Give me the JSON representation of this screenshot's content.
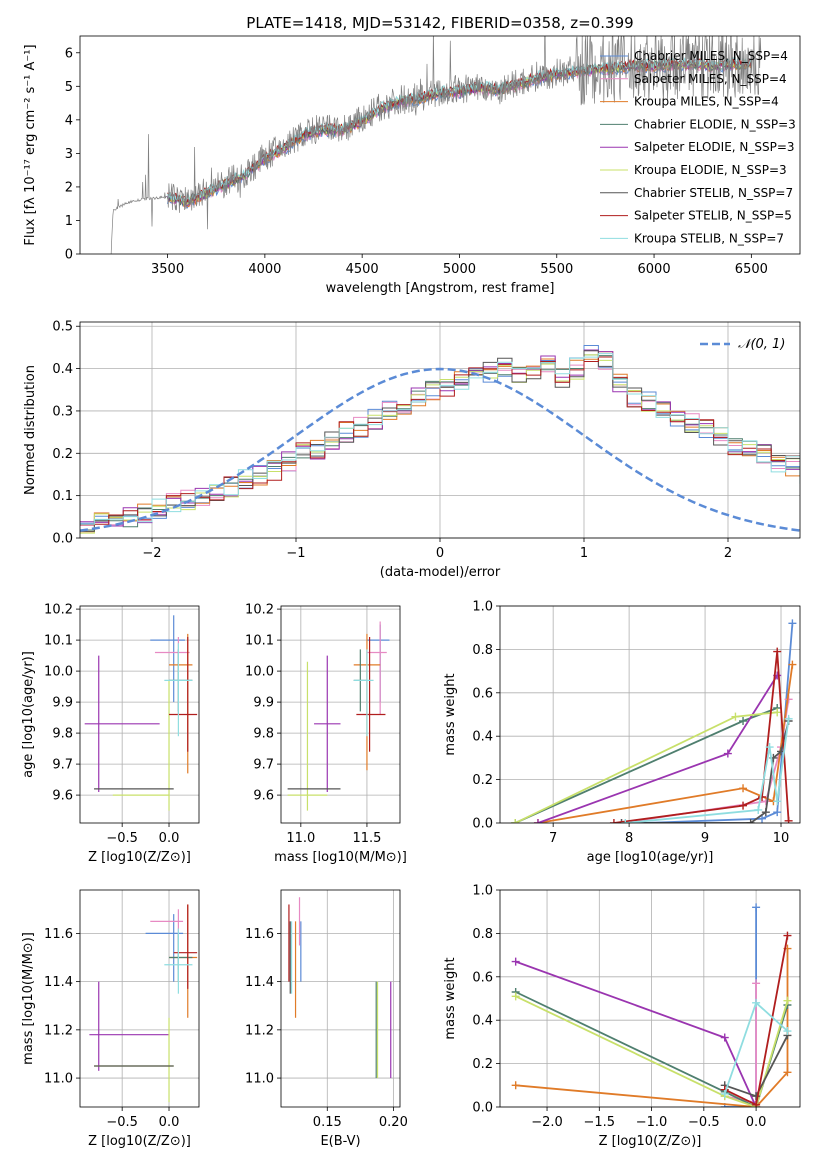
{
  "figure": {
    "title": "PLATE=1418, MJD=53142, FIBERID=0358, z=0.399"
  },
  "chart_data": [
    {
      "id": "spectrum",
      "type": "line",
      "xlabel": "wavelength [Angstrom, rest frame]",
      "ylabel": "Flux [fλ 10⁻¹⁷ erg cm⁻² s⁻¹ A⁻¹]",
      "xlim": [
        3050,
        6750
      ],
      "ylim": [
        0,
        6.5
      ],
      "xticks": [
        3500,
        4000,
        4500,
        5000,
        5500,
        6000,
        6500
      ],
      "yticks": [
        0,
        1,
        2,
        3,
        4,
        5,
        6
      ],
      "grid": false,
      "legend": "top-right",
      "observed": {
        "color": "#808080",
        "x": [
          3210,
          3220,
          3300,
          3400,
          3500,
          3600,
          3700,
          3800,
          3900,
          4000,
          4100,
          4200,
          4300,
          4400,
          4500,
          4600,
          4700,
          4800,
          4900,
          5000,
          5100,
          5200,
          5300,
          5400,
          5500,
          5600,
          5700,
          5800,
          5900,
          6000,
          6100,
          6200,
          6300,
          6400,
          6500,
          6550
        ],
        "y": [
          0.0,
          1.3,
          1.55,
          1.65,
          1.7,
          1.6,
          1.85,
          2.1,
          2.4,
          2.9,
          3.2,
          3.6,
          3.75,
          3.7,
          4.0,
          4.4,
          4.6,
          4.7,
          4.8,
          4.9,
          5.0,
          4.9,
          5.1,
          5.3,
          5.4,
          5.5,
          5.55,
          5.6,
          5.6,
          5.65,
          5.7,
          5.7,
          5.65,
          5.7,
          5.7,
          5.7
        ]
      },
      "model_x": [
        3500,
        3600,
        3700,
        3800,
        3900,
        4000,
        4100,
        4200,
        4300,
        4400,
        4500,
        4600,
        4700,
        4800,
        4900,
        5000,
        5100,
        5200,
        5300,
        5400,
        5500,
        5600,
        5700,
        5800,
        5900,
        6000,
        6100,
        6200,
        6300,
        6400,
        6500
      ],
      "model_y": [
        1.7,
        1.55,
        1.8,
        2.1,
        2.35,
        2.85,
        3.15,
        3.55,
        3.7,
        3.7,
        3.95,
        4.35,
        4.55,
        4.65,
        4.8,
        4.85,
        4.95,
        4.9,
        5.05,
        5.25,
        5.35,
        5.45,
        5.5,
        5.55,
        5.6,
        5.6,
        5.65,
        5.65,
        5.6,
        5.65,
        5.65
      ],
      "series": [
        {
          "name": "Chabrier MILES, N_SSP=4",
          "color": "#5b8bd6"
        },
        {
          "name": "Salpeter MILES, N_SSP=4",
          "color": "#e78ac3"
        },
        {
          "name": "Kroupa MILES, N_SSP=4",
          "color": "#e07b28"
        },
        {
          "name": "Chabrier ELODIE, N_SSP=3",
          "color": "#4f7f6f"
        },
        {
          "name": "Salpeter ELODIE, N_SSP=3",
          "color": "#9a35b0"
        },
        {
          "name": "Kroupa ELODIE, N_SSP=3",
          "color": "#c8e06a"
        },
        {
          "name": "Chabrier STELIB, N_SSP=7",
          "color": "#555555"
        },
        {
          "name": "Salpeter STELIB, N_SSP=5",
          "color": "#b01e1e"
        },
        {
          "name": "Kroupa STELIB, N_SSP=7",
          "color": "#8fdde0"
        }
      ]
    },
    {
      "id": "residuals",
      "type": "histogram",
      "xlabel": "(data-model)/error",
      "ylabel": "Normed distribution",
      "xlim": [
        -2.5,
        2.5
      ],
      "ylim": [
        0,
        0.51
      ],
      "xticks": [
        -2,
        -1,
        0,
        1,
        2
      ],
      "yticks": [
        0.0,
        0.1,
        0.2,
        0.3,
        0.4,
        0.5
      ],
      "grid": true,
      "legend": "top-right",
      "reference_curve": {
        "label": "𝒩(0, 1)",
        "color": "#5b8bd6",
        "style": "dashed"
      },
      "bin_edges_start": -2.5,
      "bin_width": 0.1,
      "hist_values": [
        0.035,
        0.04,
        0.045,
        0.05,
        0.06,
        0.07,
        0.08,
        0.09,
        0.1,
        0.11,
        0.12,
        0.14,
        0.15,
        0.16,
        0.18,
        0.2,
        0.21,
        0.23,
        0.25,
        0.26,
        0.28,
        0.3,
        0.31,
        0.33,
        0.35,
        0.36,
        0.37,
        0.38,
        0.39,
        0.4,
        0.39,
        0.4,
        0.41,
        0.38,
        0.4,
        0.44,
        0.42,
        0.37,
        0.33,
        0.32,
        0.3,
        0.28,
        0.27,
        0.26,
        0.24,
        0.22,
        0.21,
        0.2,
        0.18,
        0.17,
        0.15,
        0.14,
        0.13,
        0.11,
        0.1,
        0.09,
        0.08,
        0.07,
        0.06,
        0.05
      ]
    },
    {
      "id": "age_vs_Z",
      "type": "errorbar",
      "xlabel": "Z [log10(Z/Z⊙)]",
      "ylabel": "age  [log10(age/yr)]",
      "xlim": [
        -0.95,
        0.32
      ],
      "ylim": [
        9.51,
        10.21
      ],
      "xticks": [
        -0.5,
        0.0
      ],
      "yticks": [
        9.6,
        9.7,
        9.8,
        9.9,
        10.0,
        10.1,
        10.2
      ],
      "grid": true,
      "points": [
        {
          "series": 0,
          "x": 0.05,
          "y": 10.1,
          "xerr": [
            0.25,
            0.12
          ],
          "yerr": [
            0.2,
            0.08
          ]
        },
        {
          "series": 1,
          "x": 0.1,
          "y": 10.06,
          "xerr": [
            0.25,
            0.12
          ],
          "yerr": [
            0.2,
            0.05
          ]
        },
        {
          "series": 2,
          "x": 0.2,
          "y": 10.02,
          "xerr": [
            0.2,
            0.05
          ],
          "yerr": [
            0.35,
            0.1
          ]
        },
        {
          "series": 3,
          "x": 0.1,
          "y": 9.97,
          "xerr": [
            0.1,
            0.15
          ],
          "yerr": [
            0.1,
            0.1
          ]
        },
        {
          "series": 4,
          "x": -0.75,
          "y": 9.83,
          "xerr": [
            0.15,
            0.65
          ],
          "yerr": [
            0.22,
            0.22
          ]
        },
        {
          "series": 5,
          "x": 0.0,
          "y": 9.6,
          "xerr": [
            0.6,
            0.0
          ],
          "yerr": [
            0.05,
            0.37
          ]
        },
        {
          "series": 6,
          "x": -0.2,
          "y": 9.62,
          "xerr": [
            0.6,
            0.25
          ],
          "yerr": [
            0.0,
            0.0
          ]
        },
        {
          "series": 7,
          "x": 0.2,
          "y": 9.86,
          "xerr": [
            0.2,
            0.1
          ],
          "yerr": [
            0.12,
            0.25
          ]
        },
        {
          "series": 8,
          "x": 0.1,
          "y": 9.97,
          "xerr": [
            0.15,
            0.15
          ],
          "yerr": [
            0.18,
            0.12
          ]
        }
      ]
    },
    {
      "id": "age_vs_mass",
      "type": "errorbar",
      "xlabel": "mass [log10(M/M⊙)]",
      "ylabel": "",
      "xlim": [
        10.85,
        11.75
      ],
      "ylim": [
        9.51,
        10.21
      ],
      "xticks": [
        11.0,
        11.5
      ],
      "yticks": [
        9.6,
        9.7,
        9.8,
        9.9,
        10.0,
        10.1,
        10.2
      ],
      "grid": true,
      "points": [
        {
          "series": 0,
          "x": 11.6,
          "y": 10.1,
          "xerr": [
            0.1,
            0.07
          ],
          "yerr": [
            0.2,
            0.05
          ]
        },
        {
          "series": 1,
          "x": 11.6,
          "y": 10.06,
          "xerr": [
            0.1,
            0.05
          ],
          "yerr": [
            0.2,
            0.1
          ]
        },
        {
          "series": 2,
          "x": 11.5,
          "y": 10.02,
          "xerr": [
            0.1,
            0.1
          ],
          "yerr": [
            0.34,
            0.1
          ]
        },
        {
          "series": 3,
          "x": 11.45,
          "y": 9.97,
          "xerr": [
            0.05,
            0.05
          ],
          "yerr": [
            0.1,
            0.1
          ]
        },
        {
          "series": 4,
          "x": 11.2,
          "y": 9.83,
          "xerr": [
            0.1,
            0.1
          ],
          "yerr": [
            0.22,
            0.22
          ]
        },
        {
          "series": 5,
          "x": 11.05,
          "y": 9.6,
          "xerr": [
            0.15,
            0.15
          ],
          "yerr": [
            0.05,
            0.43
          ]
        },
        {
          "series": 6,
          "x": 11.0,
          "y": 9.62,
          "xerr": [
            0.1,
            0.3
          ],
          "yerr": [
            0.0,
            0.0
          ]
        },
        {
          "series": 7,
          "x": 11.52,
          "y": 9.86,
          "xerr": [
            0.1,
            0.12
          ],
          "yerr": [
            0.12,
            0.25
          ]
        },
        {
          "series": 8,
          "x": 11.5,
          "y": 9.97,
          "xerr": [
            0.1,
            0.05
          ],
          "yerr": [
            0.18,
            0.1
          ]
        }
      ]
    },
    {
      "id": "mass_weight_vs_age",
      "type": "line",
      "xlabel": "age  [log10(age/yr)]",
      "ylabel": "mass weight",
      "xlim": [
        6.3,
        10.25
      ],
      "ylim": [
        0,
        1.0
      ],
      "xticks": [
        7,
        8,
        9,
        10
      ],
      "yticks": [
        0.0,
        0.2,
        0.4,
        0.6,
        0.8,
        1.0
      ],
      "grid": true,
      "series": [
        {
          "series": 0,
          "x": [
            8.2,
            9.75,
            9.95,
            10.15
          ],
          "y": [
            0.0,
            0.02,
            0.05,
            0.92
          ]
        },
        {
          "series": 1,
          "x": [
            7.9,
            9.8,
            10.0,
            10.1
          ],
          "y": [
            0.0,
            0.1,
            0.35,
            0.57
          ]
        },
        {
          "series": 2,
          "x": [
            6.8,
            9.5,
            9.9,
            10.15
          ],
          "y": [
            0.0,
            0.16,
            0.1,
            0.73
          ]
        },
        {
          "series": 3,
          "x": [
            6.5,
            9.5,
            9.95
          ],
          "y": [
            0.0,
            0.47,
            0.53
          ]
        },
        {
          "series": 4,
          "x": [
            6.8,
            9.3,
            9.95
          ],
          "y": [
            0.0,
            0.32,
            0.68
          ]
        },
        {
          "series": 5,
          "x": [
            6.5,
            9.4,
            9.95
          ],
          "y": [
            0.0,
            0.49,
            0.51
          ]
        },
        {
          "series": 6,
          "x": [
            7.9,
            9.6,
            9.8,
            9.9,
            10.0,
            10.1
          ],
          "y": [
            0.0,
            0.0,
            0.05,
            0.3,
            0.33,
            0.47
          ]
        },
        {
          "series": 7,
          "x": [
            7.8,
            9.5,
            9.75,
            9.95,
            10.1
          ],
          "y": [
            0.0,
            0.08,
            0.12,
            0.79,
            0.01
          ]
        },
        {
          "series": 8,
          "x": [
            7.95,
            9.7,
            9.85,
            9.95,
            10.1
          ],
          "y": [
            0.0,
            0.06,
            0.35,
            0.1,
            0.48
          ]
        }
      ]
    },
    {
      "id": "mass_vs_Z",
      "type": "errorbar",
      "xlabel": "Z [log10(Z/Z⊙)]",
      "ylabel": "mass [log10(M/M⊙)]",
      "xlim": [
        -0.95,
        0.32
      ],
      "ylim": [
        10.88,
        11.78
      ],
      "xticks": [
        -0.5,
        0.0
      ],
      "yticks": [
        11.0,
        11.2,
        11.4,
        11.6
      ],
      "grid": true,
      "points": [
        {
          "series": 0,
          "x": 0.05,
          "y": 11.6,
          "xerr": [
            0.3,
            0.1
          ],
          "yerr": [
            0.2,
            0.08
          ]
        },
        {
          "series": 1,
          "x": 0.1,
          "y": 11.65,
          "xerr": [
            0.3,
            0.05
          ],
          "yerr": [
            0.2,
            0.05
          ]
        },
        {
          "series": 2,
          "x": 0.2,
          "y": 11.5,
          "xerr": [
            0.2,
            0.1
          ],
          "yerr": [
            0.25,
            0.22
          ]
        },
        {
          "series": 3,
          "x": 0.1,
          "y": 11.5,
          "xerr": [
            0.1,
            0.15
          ],
          "yerr": [
            0.1,
            0.1
          ]
        },
        {
          "series": 4,
          "x": -0.75,
          "y": 11.18,
          "xerr": [
            0.1,
            0.75
          ],
          "yerr": [
            0.15,
            0.22
          ]
        },
        {
          "series": 5,
          "x": 0.0,
          "y": 11.05,
          "xerr": [
            0.8,
            0.05
          ],
          "yerr": [
            0.15,
            0.2
          ]
        },
        {
          "series": 6,
          "x": -0.2,
          "y": 11.05,
          "xerr": [
            0.6,
            0.25
          ],
          "yerr": [
            0.0,
            0.0
          ]
        },
        {
          "series": 7,
          "x": 0.2,
          "y": 11.52,
          "xerr": [
            0.15,
            0.1
          ],
          "yerr": [
            0.15,
            0.2
          ]
        },
        {
          "series": 8,
          "x": 0.1,
          "y": 11.47,
          "xerr": [
            0.15,
            0.15
          ],
          "yerr": [
            0.12,
            0.15
          ]
        }
      ]
    },
    {
      "id": "mass_vs_ebv",
      "type": "errorbar",
      "xlabel": "E(B-V)",
      "ylabel": "",
      "xlim": [
        0.115,
        0.205
      ],
      "ylim": [
        10.88,
        11.78
      ],
      "xticks": [
        0.15,
        0.2
      ],
      "yticks": [
        11.0,
        11.2,
        11.4,
        11.6
      ],
      "grid": true,
      "points": [
        {
          "series": 0,
          "x": 0.13,
          "y": 11.6,
          "xerr": [
            0,
            0
          ],
          "yerr": [
            0.2,
            0.05
          ]
        },
        {
          "series": 1,
          "x": 0.129,
          "y": 11.65,
          "xerr": [
            0,
            0
          ],
          "yerr": [
            0.1,
            0.1
          ]
        },
        {
          "series": 2,
          "x": 0.126,
          "y": 11.45,
          "xerr": [
            0,
            0
          ],
          "yerr": [
            0.2,
            0.2
          ]
        },
        {
          "series": 3,
          "x": 0.187,
          "y": 11.2,
          "xerr": [
            0,
            0
          ],
          "yerr": [
            0.2,
            0.2
          ]
        },
        {
          "series": 4,
          "x": 0.198,
          "y": 11.2,
          "xerr": [
            0,
            0
          ],
          "yerr": [
            0.2,
            0.2
          ]
        },
        {
          "series": 5,
          "x": 0.188,
          "y": 11.2,
          "xerr": [
            0,
            0
          ],
          "yerr": [
            0.2,
            0.2
          ]
        },
        {
          "series": 6,
          "x": 0.122,
          "y": 11.5,
          "xerr": [
            0,
            0
          ],
          "yerr": [
            0.15,
            0.15
          ]
        },
        {
          "series": 7,
          "x": 0.121,
          "y": 11.55,
          "xerr": [
            0,
            0
          ],
          "yerr": [
            0.15,
            0.17
          ]
        },
        {
          "series": 8,
          "x": 0.123,
          "y": 11.5,
          "xerr": [
            0,
            0
          ],
          "yerr": [
            0.15,
            0.15
          ]
        }
      ]
    },
    {
      "id": "mass_weight_vs_Z",
      "type": "line",
      "xlabel": "Z [log10(Z/Z⊙)]",
      "ylabel": "mass weight",
      "xlim": [
        -2.45,
        0.42
      ],
      "ylim": [
        0,
        1.0
      ],
      "xticks": [
        -2.0,
        -1.5,
        -1.0,
        -0.5,
        0.0
      ],
      "yticks": [
        0.0,
        0.2,
        0.4,
        0.6,
        0.8,
        1.0
      ],
      "grid": true,
      "series": [
        {
          "series": 0,
          "x": [
            -0.3,
            0.0,
            0.0
          ],
          "y": [
            0.0,
            0.0,
            0.92
          ]
        },
        {
          "series": 1,
          "x": [
            -0.3,
            0.0,
            0.0
          ],
          "y": [
            0.05,
            0.02,
            0.57
          ]
        },
        {
          "series": 2,
          "x": [
            -2.3,
            0.0,
            0.3,
            0.3
          ],
          "y": [
            0.1,
            0.0,
            0.16,
            0.73
          ]
        },
        {
          "series": 3,
          "x": [
            -2.3,
            -0.3,
            0.0,
            0.3
          ],
          "y": [
            0.53,
            0.07,
            0.0,
            0.47
          ]
        },
        {
          "series": 4,
          "x": [
            -2.3,
            -0.3,
            0.0
          ],
          "y": [
            0.67,
            0.32,
            0.0
          ]
        },
        {
          "series": 5,
          "x": [
            -2.3,
            -0.3,
            0.0,
            0.3
          ],
          "y": [
            0.51,
            0.05,
            0.0,
            0.49
          ]
        },
        {
          "series": 6,
          "x": [
            -0.3,
            0.0,
            0.3
          ],
          "y": [
            0.1,
            0.05,
            0.33
          ]
        },
        {
          "series": 7,
          "x": [
            -0.3,
            0.0,
            0.3
          ],
          "y": [
            0.08,
            0.01,
            0.79
          ]
        },
        {
          "series": 8,
          "x": [
            -0.3,
            0.0,
            0.3
          ],
          "y": [
            0.06,
            0.48,
            0.35
          ]
        }
      ]
    }
  ]
}
